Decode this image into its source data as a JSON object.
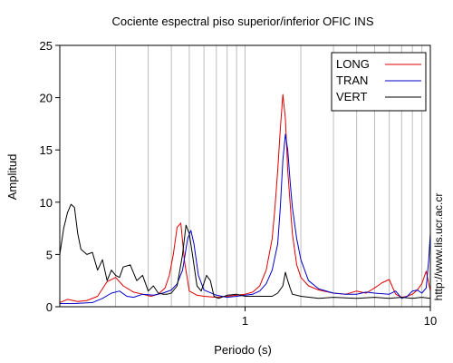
{
  "chart_data": {
    "type": "line",
    "title": "Cociente espectral piso superior/inferior  OFIC INS",
    "xlabel": "Periodo (s)",
    "ylabel": "Amplitud",
    "xscale": "log",
    "xlim": [
      0.1,
      10
    ],
    "ylim": [
      0,
      25
    ],
    "xticks": [
      1,
      10
    ],
    "yticks": [
      0,
      5,
      10,
      15,
      20,
      25
    ],
    "grid": "vertical",
    "legend": "top-right",
    "side_note": "http://www.lis.ucr.ac.cr",
    "series": [
      {
        "name": "LONG",
        "color": "#e00000",
        "x": [
          0.1,
          0.11,
          0.125,
          0.14,
          0.16,
          0.18,
          0.2,
          0.22,
          0.25,
          0.28,
          0.31,
          0.34,
          0.37,
          0.39,
          0.41,
          0.43,
          0.45,
          0.47,
          0.5,
          0.55,
          0.6,
          0.7,
          0.8,
          0.9,
          1.0,
          1.1,
          1.2,
          1.3,
          1.4,
          1.45,
          1.5,
          1.55,
          1.6,
          1.65,
          1.7,
          1.8,
          1.9,
          2.0,
          2.2,
          2.5,
          3.0,
          3.5,
          4.0,
          4.5,
          5.0,
          5.5,
          6.0,
          6.5,
          7.0,
          7.5,
          8.0,
          8.5,
          9.0,
          9.5,
          10.0
        ],
        "y": [
          0.4,
          0.7,
          0.5,
          0.6,
          1.0,
          2.4,
          2.8,
          2.0,
          1.4,
          1.2,
          1.0,
          1.2,
          1.8,
          3.0,
          5.0,
          7.6,
          8.0,
          4.5,
          1.5,
          1.1,
          1.0,
          0.9,
          1.0,
          1.1,
          1.2,
          1.4,
          2.0,
          3.5,
          6.5,
          9.5,
          13.0,
          17.0,
          20.3,
          18.0,
          13.0,
          7.0,
          4.0,
          2.8,
          2.0,
          1.6,
          1.3,
          1.2,
          1.5,
          1.3,
          1.8,
          2.3,
          2.6,
          1.2,
          0.9,
          1.0,
          1.2,
          1.6,
          2.2,
          3.4,
          1.5
        ]
      },
      {
        "name": "TRAN",
        "color": "#0000c8",
        "x": [
          0.1,
          0.12,
          0.15,
          0.17,
          0.19,
          0.21,
          0.23,
          0.25,
          0.28,
          0.32,
          0.36,
          0.4,
          0.43,
          0.46,
          0.49,
          0.51,
          0.53,
          0.56,
          0.6,
          0.7,
          0.8,
          0.9,
          1.0,
          1.1,
          1.2,
          1.3,
          1.4,
          1.5,
          1.55,
          1.6,
          1.65,
          1.7,
          1.75,
          1.8,
          1.9,
          2.0,
          2.2,
          2.5,
          3.0,
          3.5,
          4.0,
          4.5,
          5.0,
          6.0,
          6.5,
          7.0,
          7.5,
          8.0,
          8.5,
          9.0,
          9.5,
          9.8,
          10.0
        ],
        "y": [
          0.3,
          0.3,
          0.4,
          0.8,
          1.3,
          1.5,
          1.0,
          0.9,
          1.2,
          1.1,
          1.3,
          1.6,
          2.2,
          3.5,
          6.5,
          7.3,
          6.0,
          3.0,
          1.6,
          1.1,
          0.9,
          1.0,
          1.1,
          1.2,
          1.5,
          2.2,
          3.5,
          6.0,
          9.5,
          14.0,
          16.5,
          15.0,
          12.0,
          9.5,
          6.5,
          4.5,
          2.5,
          1.7,
          1.3,
          1.2,
          1.2,
          1.4,
          1.3,
          1.2,
          1.5,
          0.8,
          1.0,
          1.5,
          1.6,
          1.3,
          1.8,
          4.5,
          7.0
        ]
      },
      {
        "name": "VERT",
        "color": "#000000",
        "x": [
          0.1,
          0.105,
          0.11,
          0.115,
          0.12,
          0.125,
          0.13,
          0.14,
          0.15,
          0.16,
          0.17,
          0.18,
          0.19,
          0.2,
          0.21,
          0.22,
          0.24,
          0.26,
          0.28,
          0.3,
          0.32,
          0.34,
          0.36,
          0.38,
          0.4,
          0.43,
          0.46,
          0.48,
          0.5,
          0.52,
          0.55,
          0.58,
          0.62,
          0.65,
          0.68,
          0.72,
          0.8,
          0.9,
          1.0,
          1.2,
          1.4,
          1.5,
          1.6,
          1.65,
          1.7,
          1.75,
          1.8,
          2.0,
          2.5,
          3.0,
          4.0,
          5.0,
          6.0,
          7.0,
          8.0,
          9.0,
          10.0
        ],
        "y": [
          5.0,
          7.5,
          9.0,
          9.8,
          9.5,
          7.0,
          5.5,
          5.0,
          5.2,
          3.5,
          4.5,
          2.5,
          3.5,
          3.0,
          2.8,
          3.8,
          4.0,
          2.5,
          3.0,
          1.5,
          2.0,
          1.3,
          1.2,
          1.2,
          1.3,
          2.0,
          5.0,
          7.8,
          7.0,
          5.0,
          2.0,
          1.5,
          3.0,
          2.5,
          1.0,
          0.8,
          1.1,
          1.2,
          1.0,
          1.0,
          1.0,
          1.3,
          2.0,
          3.3,
          2.5,
          1.8,
          1.2,
          1.0,
          0.8,
          0.9,
          0.8,
          0.9,
          0.8,
          0.9,
          0.8,
          0.9,
          0.8
        ]
      }
    ]
  }
}
